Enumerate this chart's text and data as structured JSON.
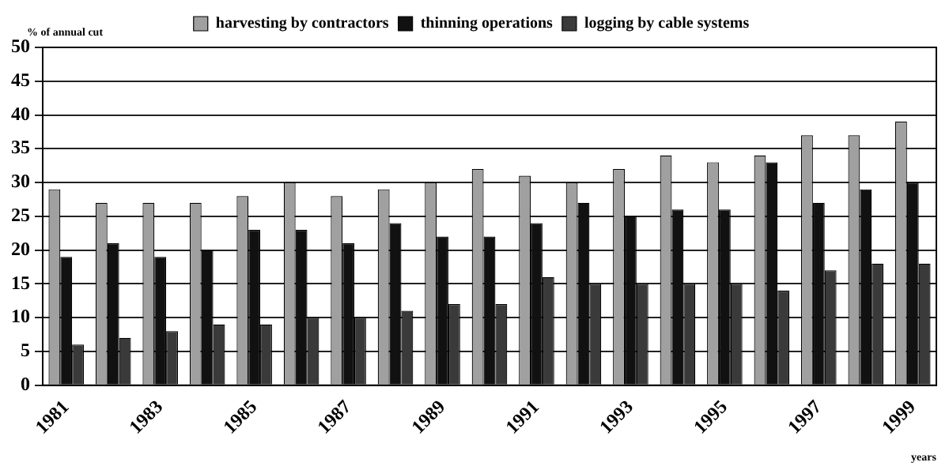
{
  "chart_data": {
    "type": "bar",
    "xlabel": "years",
    "ylabel": "% of annual cut",
    "categories": [
      "1981",
      null,
      "1983",
      null,
      "1985",
      null,
      "1987",
      null,
      "1989",
      null,
      "1991",
      null,
      "1993",
      null,
      "1995",
      null,
      "1997",
      null,
      "1999"
    ],
    "series": [
      {
        "name": "harvesting by contractors",
        "color": "#a0a0a0",
        "values": [
          29,
          27,
          27,
          27,
          28,
          30,
          28,
          29,
          30,
          32,
          31,
          30,
          32,
          34,
          33,
          34,
          37,
          37,
          39
        ]
      },
      {
        "name": "thinning operations",
        "color": "#111111",
        "values": [
          19,
          21,
          19,
          20,
          23,
          23,
          21,
          24,
          22,
          22,
          24,
          27,
          25,
          26,
          26,
          33,
          27,
          29,
          30
        ]
      },
      {
        "name": "logging by cable systems",
        "color": "#3a3a3a",
        "values": [
          6,
          7,
          8,
          9,
          9,
          10,
          10,
          11,
          12,
          12,
          16,
          15,
          15,
          15,
          15,
          14,
          17,
          18,
          18
        ]
      }
    ],
    "ylim": [
      0,
      50
    ],
    "yticks": [
      0,
      5,
      10,
      15,
      20,
      25,
      30,
      35,
      40,
      45,
      50
    ],
    "grid": "y",
    "legend": "top"
  }
}
